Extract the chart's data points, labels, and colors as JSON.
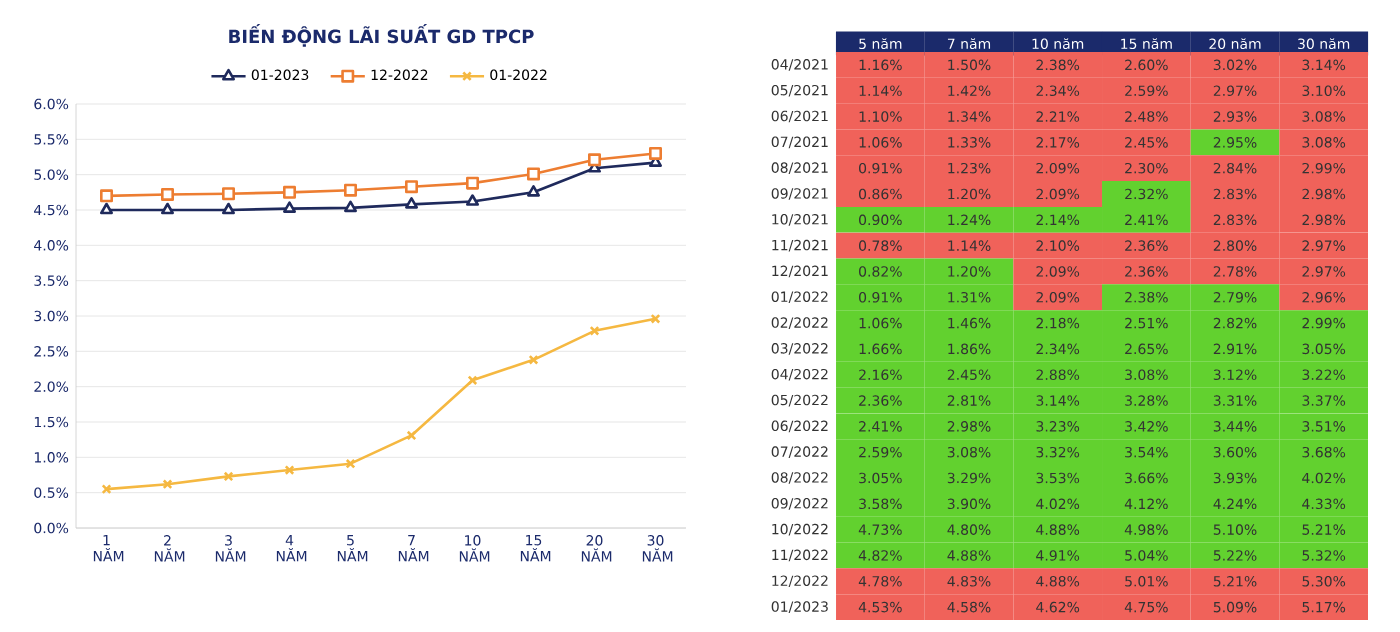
{
  "chart_data": [
    {
      "type": "line",
      "title": "BIẾN ĐỘNG LÃI SUẤT GD TPCP",
      "categories": [
        "1 NĂM",
        "2 NĂM",
        "3 NĂM",
        "4 NĂM",
        "5 NĂM",
        "7 NĂM",
        "10 NĂM",
        "15 NĂM",
        "20 NĂM",
        "30 NĂM"
      ],
      "series": [
        {
          "name": "01-2023",
          "color": "#1f2a5c",
          "marker": "triangle",
          "values": [
            4.5,
            4.5,
            4.5,
            4.52,
            4.53,
            4.58,
            4.62,
            4.75,
            5.09,
            5.17
          ]
        },
        {
          "name": "12-2022",
          "color": "#ed7d31",
          "marker": "square",
          "values": [
            4.7,
            4.72,
            4.73,
            4.75,
            4.78,
            4.83,
            4.88,
            5.01,
            5.21,
            5.3
          ]
        },
        {
          "name": "01-2022",
          "color": "#f5b841",
          "marker": "cross",
          "values": [
            0.55,
            0.62,
            0.73,
            0.82,
            0.91,
            1.31,
            2.09,
            2.38,
            2.79,
            2.96
          ]
        }
      ],
      "ylim": [
        0,
        6
      ],
      "yticks": [
        {
          "value": 0,
          "label": "0.0%"
        },
        {
          "value": 0.5,
          "label": "0.5%"
        },
        {
          "value": 1,
          "label": "1.0%"
        },
        {
          "value": 1.5,
          "label": "1.5%"
        },
        {
          "value": 2,
          "label": "2.0%"
        },
        {
          "value": 2.5,
          "label": "2.5%"
        },
        {
          "value": 3,
          "label": "3.0%"
        },
        {
          "value": 3.5,
          "label": "3.5%"
        },
        {
          "value": 4,
          "label": "4.0%"
        },
        {
          "value": 4.5,
          "label": "4.5%"
        },
        {
          "value": 5,
          "label": "5.0%"
        },
        {
          "value": 5.5,
          "label": "5.5%"
        },
        {
          "value": 6,
          "label": "6.0%"
        }
      ],
      "grid": "y",
      "legend": "top"
    },
    {
      "type": "heatmap",
      "categories": [
        "5 năm",
        "7 năm",
        "10 năm",
        "15 năm",
        "20 năm",
        "30 năm"
      ],
      "y_categories": [
        "04/2021",
        "05/2021",
        "06/2021",
        "07/2021",
        "08/2021",
        "09/2021",
        "10/2021",
        "11/2021",
        "12/2021",
        "01/2022",
        "02/2022",
        "03/2022",
        "04/2022",
        "05/2022",
        "06/2022",
        "07/2022",
        "08/2022",
        "09/2022",
        "10/2022",
        "11/2022",
        "12/2022",
        "01/2023"
      ],
      "cells": [
        [
          1.16,
          1.5,
          2.38,
          2.6,
          3.02,
          3.14
        ],
        [
          1.14,
          1.42,
          2.34,
          2.59,
          2.97,
          3.1
        ],
        [
          1.1,
          1.34,
          2.21,
          2.48,
          2.93,
          3.08
        ],
        [
          1.06,
          1.33,
          2.17,
          2.45,
          2.95,
          3.08
        ],
        [
          0.91,
          1.23,
          2.09,
          2.3,
          2.84,
          2.99
        ],
        [
          0.86,
          1.2,
          2.09,
          2.32,
          2.83,
          2.98
        ],
        [
          0.9,
          1.24,
          2.14,
          2.41,
          2.83,
          2.98
        ],
        [
          0.78,
          1.14,
          2.1,
          2.36,
          2.8,
          2.97
        ],
        [
          0.82,
          1.2,
          2.09,
          2.36,
          2.78,
          2.97
        ],
        [
          0.91,
          1.31,
          2.09,
          2.38,
          2.79,
          2.96
        ],
        [
          1.06,
          1.46,
          2.18,
          2.51,
          2.82,
          2.99
        ],
        [
          1.66,
          1.86,
          2.34,
          2.65,
          2.91,
          3.05
        ],
        [
          2.16,
          2.45,
          2.88,
          3.08,
          3.12,
          3.22
        ],
        [
          2.36,
          2.81,
          3.14,
          3.28,
          3.31,
          3.37
        ],
        [
          2.41,
          2.98,
          3.23,
          3.42,
          3.44,
          3.51
        ],
        [
          2.59,
          3.08,
          3.32,
          3.54,
          3.6,
          3.68
        ],
        [
          3.05,
          3.29,
          3.53,
          3.66,
          3.93,
          4.02
        ],
        [
          3.58,
          3.9,
          4.02,
          4.12,
          4.24,
          4.33
        ],
        [
          4.73,
          4.8,
          4.88,
          4.98,
          5.1,
          5.21
        ],
        [
          4.82,
          4.88,
          4.91,
          5.04,
          5.22,
          5.32
        ],
        [
          4.78,
          4.83,
          4.88,
          5.01,
          5.21,
          5.3
        ],
        [
          4.53,
          4.58,
          4.62,
          4.75,
          5.09,
          5.17
        ]
      ],
      "cell_labels": [
        [
          "1.16%",
          "1.50%",
          "2.38%",
          "2.60%",
          "3.02%",
          "3.14%"
        ],
        [
          "1.14%",
          "1.42%",
          "2.34%",
          "2.59%",
          "2.97%",
          "3.10%"
        ],
        [
          "1.10%",
          "1.34%",
          "2.21%",
          "2.48%",
          "2.93%",
          "3.08%"
        ],
        [
          "1.06%",
          "1.33%",
          "2.17%",
          "2.45%",
          "2.95%",
          "3.08%"
        ],
        [
          "0.91%",
          "1.23%",
          "2.09%",
          "2.30%",
          "2.84%",
          "2.99%"
        ],
        [
          "0.86%",
          "1.20%",
          "2.09%",
          "2.32%",
          "2.83%",
          "2.98%"
        ],
        [
          "0.90%",
          "1.24%",
          "2.14%",
          "2.41%",
          "2.83%",
          "2.98%"
        ],
        [
          "0.78%",
          "1.14%",
          "2.10%",
          "2.36%",
          "2.80%",
          "2.97%"
        ],
        [
          "0.82%",
          "1.20%",
          "2.09%",
          "2.36%",
          "2.78%",
          "2.97%"
        ],
        [
          "0.91%",
          "1.31%",
          "2.09%",
          "2.38%",
          "2.79%",
          "2.96%"
        ],
        [
          "1.06%",
          "1.46%",
          "2.18%",
          "2.51%",
          "2.82%",
          "2.99%"
        ],
        [
          "1.66%",
          "1.86%",
          "2.34%",
          "2.65%",
          "2.91%",
          "3.05%"
        ],
        [
          "2.16%",
          "2.45%",
          "2.88%",
          "3.08%",
          "3.12%",
          "3.22%"
        ],
        [
          "2.36%",
          "2.81%",
          "3.14%",
          "3.28%",
          "3.31%",
          "3.37%"
        ],
        [
          "2.41%",
          "2.98%",
          "3.23%",
          "3.42%",
          "3.44%",
          "3.51%"
        ],
        [
          "2.59%",
          "3.08%",
          "3.32%",
          "3.54%",
          "3.60%",
          "3.68%"
        ],
        [
          "3.05%",
          "3.29%",
          "3.53%",
          "3.66%",
          "3.93%",
          "4.02%"
        ],
        [
          "3.58%",
          "3.90%",
          "4.02%",
          "4.12%",
          "4.24%",
          "4.33%"
        ],
        [
          "4.73%",
          "4.80%",
          "4.88%",
          "4.98%",
          "5.10%",
          "5.21%"
        ],
        [
          "4.82%",
          "4.88%",
          "4.91%",
          "5.04%",
          "5.22%",
          "5.32%"
        ],
        [
          "4.78%",
          "4.83%",
          "4.88%",
          "5.01%",
          "5.21%",
          "5.30%"
        ],
        [
          "4.53%",
          "4.58%",
          "4.62%",
          "4.75%",
          "5.09%",
          "5.17%"
        ]
      ]
    }
  ]
}
